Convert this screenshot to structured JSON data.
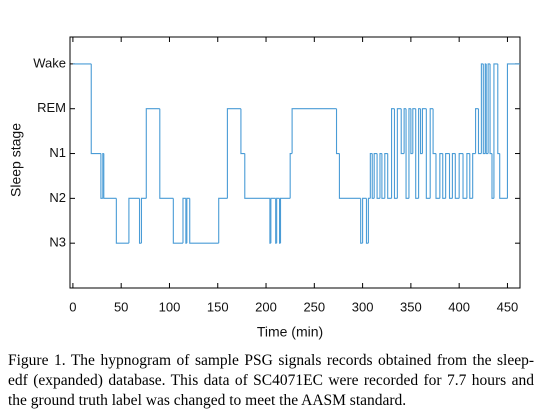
{
  "chart_data": {
    "type": "step",
    "xlabel": "Time (min)",
    "ylabel": "Sleep stage",
    "xlim": [
      -3,
      463
    ],
    "ylim": [
      -1,
      4.6
    ],
    "xticks": [
      0,
      50,
      100,
      150,
      200,
      250,
      300,
      350,
      400,
      450
    ],
    "yticks": [
      {
        "value": 0,
        "label": "N3"
      },
      {
        "value": 1,
        "label": "N2"
      },
      {
        "value": 2,
        "label": "N1"
      },
      {
        "value": 3,
        "label": "REM"
      },
      {
        "value": 4,
        "label": "Wake"
      }
    ],
    "color": "#4a9cd6",
    "x": [
      0,
      19,
      29,
      31,
      32,
      45,
      58,
      69,
      71,
      76,
      90,
      104,
      114,
      117,
      118,
      121,
      151,
      160,
      174,
      178,
      204,
      205,
      210,
      211,
      214,
      215,
      225,
      227,
      273,
      276,
      298,
      300,
      304,
      306,
      308,
      310,
      312,
      315,
      318,
      320,
      323,
      326,
      330,
      333,
      336,
      340,
      343,
      345,
      348,
      350,
      352,
      355,
      358,
      360,
      362,
      366,
      370,
      373,
      376,
      380,
      383,
      386,
      390,
      393,
      396,
      400,
      404,
      408,
      411,
      414,
      417,
      420,
      423,
      425,
      427,
      428,
      430,
      432,
      434,
      436,
      440,
      442,
      450,
      463
    ],
    "values": [
      4,
      2,
      1,
      2,
      1,
      0,
      1,
      0,
      1,
      3,
      1,
      0,
      1,
      0,
      1,
      0,
      1,
      3,
      2,
      1,
      0,
      1,
      0,
      1,
      0,
      1,
      2,
      3,
      2,
      1,
      0,
      1,
      0,
      1,
      2,
      1,
      2,
      1,
      2,
      1,
      2,
      1,
      3,
      1,
      3,
      2,
      3,
      1,
      3,
      2,
      3,
      1,
      3,
      2,
      3,
      1,
      3,
      2,
      1,
      2,
      1,
      2,
      1,
      2,
      1,
      2,
      1,
      2,
      1,
      2,
      3,
      2,
      4,
      2,
      4,
      2,
      4,
      2,
      1,
      4,
      2,
      1,
      4,
      4
    ]
  },
  "caption": "Figure 1. The hypnogram of sample PSG signals records obtained from the sleep-edf (expanded) database. This data of SC4071EC were recorded for 7.7 hours and the ground truth label was changed to meet the AASM standard."
}
